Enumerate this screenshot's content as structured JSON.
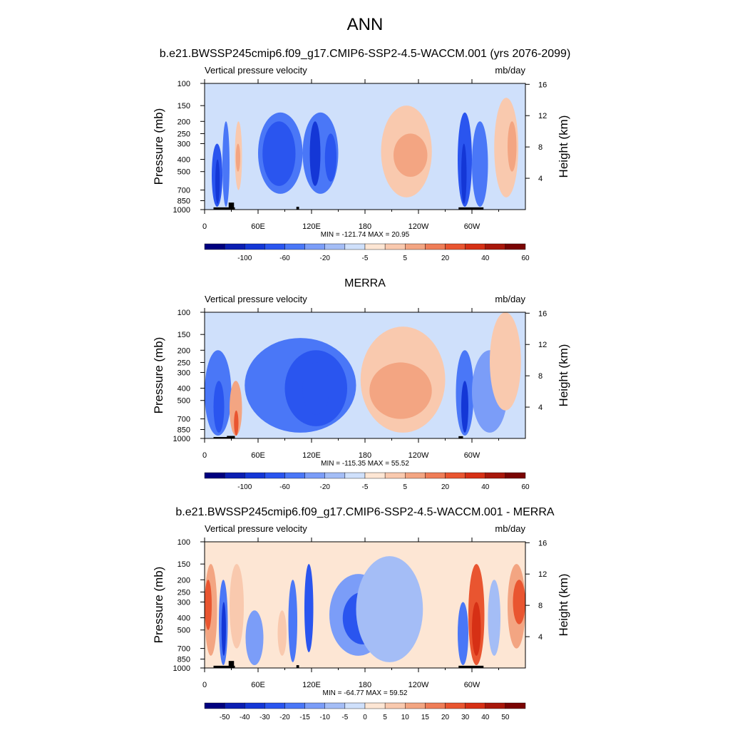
{
  "page_title": "ANN",
  "colors": {
    "neg": [
      "#00007f",
      "#0b1eb2",
      "#1437d6",
      "#2a55ef",
      "#4a77f7",
      "#7b9df8",
      "#a4bdf6",
      "#cfe0fb"
    ],
    "pos": [
      "#fde6d4",
      "#f9c9ae",
      "#f3a582",
      "#ef7d57",
      "#e95530",
      "#d63015",
      "#a8170b",
      "#7a0403"
    ],
    "land": "#000000"
  },
  "chart_data": [
    {
      "type": "heatmap",
      "title": "b.e21.BWSSP245cmip6.f09_g17.CMIP6-SSP2-4.5-WACCM.001 (yrs 2076-2099)",
      "left_string": "Vertical pressure velocity",
      "right_string": "mb/day",
      "ylabel": "Pressure (mb)",
      "y2label": "Height (km)",
      "x_ticks": [
        "0",
        "60E",
        "120E",
        "180",
        "120W",
        "60W"
      ],
      "x_tick_values": [
        0,
        60,
        120,
        180,
        240,
        300
      ],
      "xlim": [
        0,
        360
      ],
      "y_ticks": [
        "100",
        "150",
        "200",
        "250",
        "300",
        "400",
        "500",
        "700",
        "850",
        "1000"
      ],
      "y_tick_values": [
        100,
        150,
        200,
        250,
        300,
        400,
        500,
        700,
        850,
        1000
      ],
      "ylim": [
        1000,
        100
      ],
      "y_scale": "log",
      "y2_ticks": [
        "16",
        "12",
        "8",
        "4"
      ],
      "y2_tick_values": [
        16,
        12,
        8,
        4
      ],
      "stats": "MIN = -121.74  MAX =  20.95",
      "min": -121.74,
      "max": 20.95,
      "colorbar_labels": [
        "-100",
        "-60",
        "-20",
        "-5",
        "5",
        "20",
        "40",
        "60"
      ],
      "colorbar_levels": [
        -120,
        -100,
        -80,
        -60,
        -40,
        -20,
        -10,
        -5,
        0,
        5,
        10,
        20,
        30,
        40,
        50,
        60,
        70
      ],
      "cells": [
        {
          "lon": [
            8,
            20
          ],
          "p": [
            300,
            950
          ],
          "v": -45
        },
        {
          "lon": [
            12,
            17
          ],
          "p": [
            400,
            900
          ],
          "v": -75
        },
        {
          "lon": [
            20,
            28
          ],
          "p": [
            200,
            950
          ],
          "v": -30
        },
        {
          "lon": [
            34,
            42
          ],
          "p": [
            200,
            700
          ],
          "v": 8
        },
        {
          "lon": [
            35,
            40
          ],
          "p": [
            300,
            500
          ],
          "v": 18
        },
        {
          "lon": [
            60,
            110
          ],
          "p": [
            170,
            750
          ],
          "v": -40
        },
        {
          "lon": [
            65,
            102
          ],
          "p": [
            200,
            650
          ],
          "v": -60
        },
        {
          "lon": [
            110,
            150
          ],
          "p": [
            170,
            750
          ],
          "v": -40
        },
        {
          "lon": [
            118,
            130
          ],
          "p": [
            200,
            650
          ],
          "v": -80
        },
        {
          "lon": [
            135,
            148
          ],
          "p": [
            250,
            600
          ],
          "v": -60
        },
        {
          "lon": [
            198,
            255
          ],
          "p": [
            150,
            800
          ],
          "v": 7
        },
        {
          "lon": [
            212,
            250
          ],
          "p": [
            250,
            550
          ],
          "v": 17
        },
        {
          "lon": [
            284,
            300
          ],
          "p": [
            170,
            950
          ],
          "v": -50
        },
        {
          "lon": [
            288,
            294
          ],
          "p": [
            300,
            900
          ],
          "v": -80
        },
        {
          "lon": [
            300,
            318
          ],
          "p": [
            200,
            950
          ],
          "v": -30
        },
        {
          "lon": [
            325,
            352
          ],
          "p": [
            130,
            800
          ],
          "v": 6
        },
        {
          "lon": [
            340,
            350
          ],
          "p": [
            200,
            500
          ],
          "v": 15
        }
      ],
      "land": [
        {
          "lon": [
            10,
            34
          ],
          "p": [
            960,
            1000
          ]
        },
        {
          "lon": [
            27,
            33
          ],
          "p": [
            880,
            1000
          ]
        },
        {
          "lon": [
            103,
            106
          ],
          "p": [
            950,
            1000
          ]
        },
        {
          "lon": [
            285,
            313
          ],
          "p": [
            960,
            1000
          ]
        }
      ]
    },
    {
      "type": "heatmap",
      "title": "MERRA",
      "left_string": "Vertical pressure velocity",
      "right_string": "mb/day",
      "ylabel": "Pressure (mb)",
      "y2label": "Height (km)",
      "x_ticks": [
        "0",
        "60E",
        "120E",
        "180",
        "120W",
        "60W"
      ],
      "x_tick_values": [
        0,
        60,
        120,
        180,
        240,
        300
      ],
      "xlim": [
        0,
        360
      ],
      "y_ticks": [
        "100",
        "150",
        "200",
        "250",
        "300",
        "400",
        "500",
        "700",
        "850",
        "1000"
      ],
      "y_tick_values": [
        100,
        150,
        200,
        250,
        300,
        400,
        500,
        700,
        850,
        1000
      ],
      "ylim": [
        1000,
        100
      ],
      "y_scale": "log",
      "y2_ticks": [
        "16",
        "12",
        "8",
        "4"
      ],
      "y2_tick_values": [
        16,
        12,
        8,
        4
      ],
      "stats": "MIN = -115.35  MAX =  55.52",
      "min": -115.35,
      "max": 55.52,
      "colorbar_labels": [
        "-100",
        "-60",
        "-20",
        "-5",
        "5",
        "20",
        "40",
        "60"
      ],
      "colorbar_levels": [
        -120,
        -100,
        -80,
        -60,
        -40,
        -20,
        -10,
        -5,
        0,
        5,
        10,
        20,
        30,
        40,
        50,
        60,
        70
      ],
      "cells": [
        {
          "lon": [
            0,
            30
          ],
          "p": [
            200,
            950
          ],
          "v": -25
        },
        {
          "lon": [
            10,
            22
          ],
          "p": [
            350,
            900
          ],
          "v": -45
        },
        {
          "lon": [
            28,
            42
          ],
          "p": [
            350,
            950
          ],
          "v": 15
        },
        {
          "lon": [
            33,
            38
          ],
          "p": [
            600,
            950
          ],
          "v": 30
        },
        {
          "lon": [
            45,
            170
          ],
          "p": [
            160,
            900
          ],
          "v": -25
        },
        {
          "lon": [
            90,
            160
          ],
          "p": [
            200,
            800
          ],
          "v": -45
        },
        {
          "lon": [
            110,
            140
          ],
          "p": [
            250,
            650
          ],
          "v": -55
        },
        {
          "lon": [
            175,
            270
          ],
          "p": [
            130,
            900
          ],
          "v": 6
        },
        {
          "lon": [
            185,
            255
          ],
          "p": [
            250,
            700
          ],
          "v": 17
        },
        {
          "lon": [
            282,
            302
          ],
          "p": [
            200,
            950
          ],
          "v": -40
        },
        {
          "lon": [
            288,
            296
          ],
          "p": [
            350,
            900
          ],
          "v": -65
        },
        {
          "lon": [
            300,
            340
          ],
          "p": [
            200,
            900
          ],
          "v": -15
        },
        {
          "lon": [
            320,
            355
          ],
          "p": [
            100,
            600
          ],
          "v": 5
        }
      ],
      "land": [
        {
          "lon": [
            10,
            34
          ],
          "p": [
            975,
            1000
          ]
        },
        {
          "lon": [
            25,
            34
          ],
          "p": [
            955,
            1000
          ]
        },
        {
          "lon": [
            285,
            290
          ],
          "p": [
            960,
            1000
          ]
        }
      ]
    },
    {
      "type": "heatmap",
      "title": "b.e21.BWSSP245cmip6.f09_g17.CMIP6-SSP2-4.5-WACCM.001 - MERRA",
      "left_string": "Vertical pressure velocity",
      "right_string": "mb/day",
      "ylabel": "Pressure (mb)",
      "y2label": "Height (km)",
      "x_ticks": [
        "0",
        "60E",
        "120E",
        "180",
        "120W",
        "60W"
      ],
      "x_tick_values": [
        0,
        60,
        120,
        180,
        240,
        300
      ],
      "xlim": [
        0,
        360
      ],
      "y_ticks": [
        "100",
        "150",
        "200",
        "250",
        "300",
        "400",
        "500",
        "700",
        "850",
        "1000"
      ],
      "y_tick_values": [
        100,
        150,
        200,
        250,
        300,
        400,
        500,
        700,
        850,
        1000
      ],
      "ylim": [
        1000,
        100
      ],
      "y_scale": "log",
      "y2_ticks": [
        "16",
        "12",
        "8",
        "4"
      ],
      "y2_tick_values": [
        16,
        12,
        8,
        4
      ],
      "stats": "MIN = -64.77  MAX =  59.52",
      "min": -64.77,
      "max": 59.52,
      "colorbar_labels": [
        "-50",
        "-40",
        "-30",
        "-20",
        "-15",
        "-10",
        "-5",
        "0",
        "5",
        "10",
        "15",
        "20",
        "30",
        "40",
        "50"
      ],
      "colorbar_levels": [
        -60,
        -50,
        -40,
        -30,
        -20,
        -15,
        -10,
        -5,
        0,
        5,
        10,
        15,
        20,
        30,
        40,
        50,
        60
      ],
      "cells": [
        {
          "lon": [
            0,
            14
          ],
          "p": [
            150,
            800
          ],
          "v": 12
        },
        {
          "lon": [
            0,
            8
          ],
          "p": [
            200,
            500
          ],
          "v": 22
        },
        {
          "lon": [
            16,
            26
          ],
          "p": [
            200,
            950
          ],
          "v": -18
        },
        {
          "lon": [
            19,
            24
          ],
          "p": [
            300,
            800
          ],
          "v": -32
        },
        {
          "lon": [
            28,
            44
          ],
          "p": [
            150,
            700
          ],
          "v": 6
        },
        {
          "lon": [
            46,
            66
          ],
          "p": [
            350,
            950
          ],
          "v": -12
        },
        {
          "lon": [
            82,
            92
          ],
          "p": [
            350,
            800
          ],
          "v": 9
        },
        {
          "lon": [
            94,
            104
          ],
          "p": [
            200,
            900
          ],
          "v": -18
        },
        {
          "lon": [
            112,
            122
          ],
          "p": [
            150,
            750
          ],
          "v": -22
        },
        {
          "lon": [
            124,
            134
          ],
          "p": [
            300,
            900
          ],
          "v": 4
        },
        {
          "lon": [
            140,
            205
          ],
          "p": [
            180,
            800
          ],
          "v": -12
        },
        {
          "lon": [
            155,
            200
          ],
          "p": [
            250,
            650
          ],
          "v": -22
        },
        {
          "lon": [
            170,
            245
          ],
          "p": [
            130,
            900
          ],
          "v": -6
        },
        {
          "lon": [
            255,
            282
          ],
          "p": [
            110,
            600
          ],
          "v": 4
        },
        {
          "lon": [
            284,
            296
          ],
          "p": [
            300,
            950
          ],
          "v": -18
        },
        {
          "lon": [
            296,
            314
          ],
          "p": [
            150,
            950
          ],
          "v": 22
        },
        {
          "lon": [
            300,
            310
          ],
          "p": [
            300,
            800
          ],
          "v": 35
        },
        {
          "lon": [
            318,
            332
          ],
          "p": [
            200,
            800
          ],
          "v": -6
        },
        {
          "lon": [
            340,
            360
          ],
          "p": [
            150,
            700
          ],
          "v": 14
        },
        {
          "lon": [
            346,
            360
          ],
          "p": [
            200,
            450
          ],
          "v": 22
        }
      ],
      "land": [
        {
          "lon": [
            10,
            34
          ],
          "p": [
            960,
            1000
          ]
        },
        {
          "lon": [
            27,
            33
          ],
          "p": [
            880,
            1000
          ]
        },
        {
          "lon": [
            103,
            106
          ],
          "p": [
            950,
            1000
          ]
        },
        {
          "lon": [
            285,
            313
          ],
          "p": [
            960,
            1000
          ]
        }
      ]
    }
  ]
}
